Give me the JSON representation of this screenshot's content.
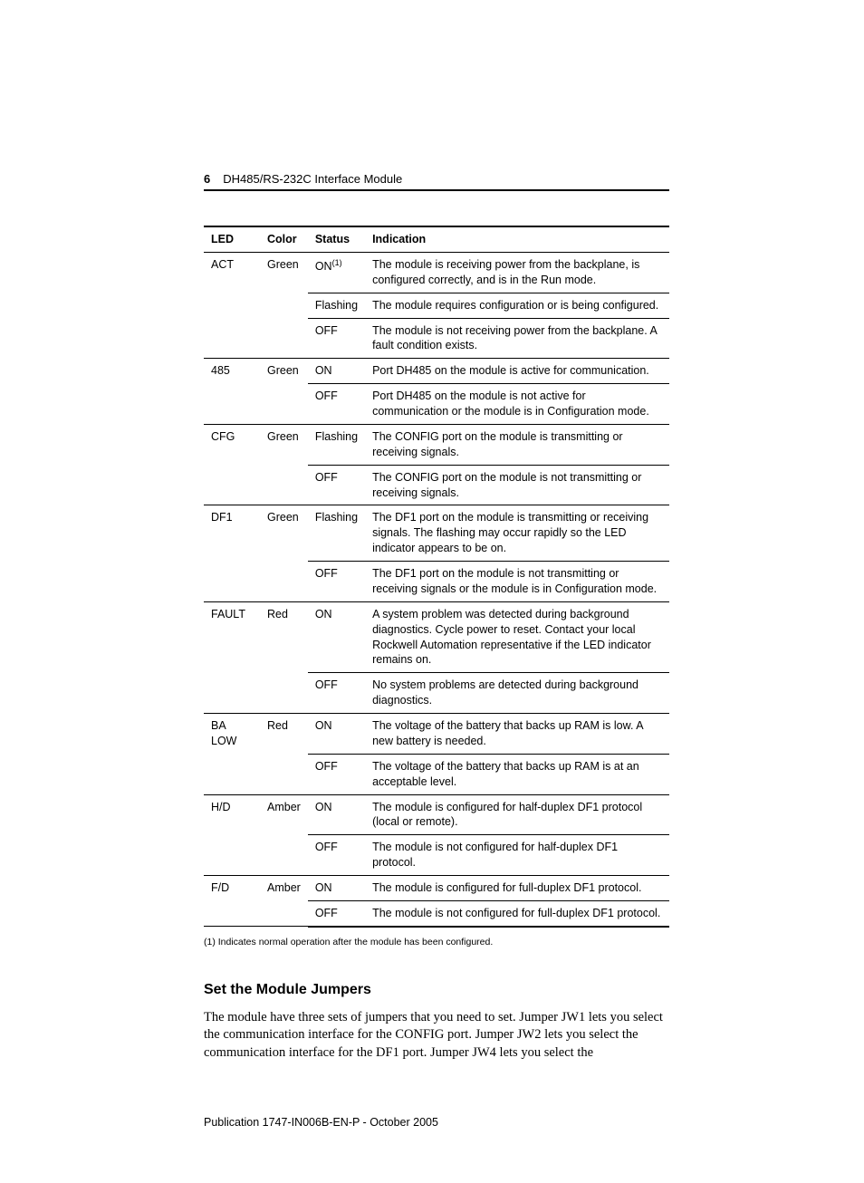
{
  "header": {
    "pageNumber": "6",
    "title": "DH485/RS-232C Interface Module"
  },
  "table": {
    "columns": [
      "LED",
      "Color",
      "Status",
      "Indication"
    ],
    "groups": [
      {
        "led": "ACT",
        "color": "Green",
        "rows": [
          {
            "status": "ON",
            "statusSup": "(1)",
            "indication": "The module is receiving power from the backplane, is configured correctly, and is in the Run mode."
          },
          {
            "status": "Flashing",
            "indication": "The module requires configuration or is being configured."
          },
          {
            "status": "OFF",
            "indication": "The module is not receiving power from the backplane. A fault condition exists."
          }
        ]
      },
      {
        "led": "485",
        "color": "Green",
        "rows": [
          {
            "status": "ON",
            "indication": "Port DH485 on the module is active for communication."
          },
          {
            "status": "OFF",
            "indication": "Port DH485 on the module is not active for communication or the module is in Configuration mode."
          }
        ]
      },
      {
        "led": "CFG",
        "color": "Green",
        "rows": [
          {
            "status": "Flashing",
            "indication": "The CONFIG port on the module is transmitting or receiving signals."
          },
          {
            "status": "OFF",
            "indication": "The CONFIG port on the module is not transmitting or receiving signals."
          }
        ]
      },
      {
        "led": "DF1",
        "color": "Green",
        "rows": [
          {
            "status": "Flashing",
            "indication": "The DF1 port on the module is transmitting or receiving signals. The flashing may occur rapidly so the LED indicator appears to be on."
          },
          {
            "status": "OFF",
            "indication": "The DF1 port on the module is not transmitting or receiving signals or the module is in Configuration mode."
          }
        ]
      },
      {
        "led": "FAULT",
        "color": "Red",
        "rows": [
          {
            "status": "ON",
            "indication": "A system problem was detected during background diagnostics. Cycle power to reset. Contact your local Rockwell Automation representative if the LED indicator remains on."
          },
          {
            "status": "OFF",
            "indication": "No system problems are detected during background diagnostics."
          }
        ]
      },
      {
        "led": "BA LOW",
        "color": "Red",
        "rows": [
          {
            "status": "ON",
            "indication": "The voltage of the battery that backs up RAM is low. A new battery is needed."
          },
          {
            "status": "OFF",
            "indication": "The voltage of the battery that backs up RAM is at an acceptable level."
          }
        ]
      },
      {
        "led": "H/D",
        "color": "Amber",
        "rows": [
          {
            "status": "ON",
            "indication": "The module is configured for half-duplex DF1 protocol (local or remote)."
          },
          {
            "status": "OFF",
            "indication": "The module is not configured for half-duplex DF1 protocol."
          }
        ]
      },
      {
        "led": "F/D",
        "color": "Amber",
        "rows": [
          {
            "status": "ON",
            "indication": "The module is configured for full-duplex DF1 protocol."
          },
          {
            "status": "OFF",
            "indication": "The module is not configured for full-duplex DF1 protocol."
          }
        ]
      }
    ]
  },
  "footnote": "(1)   Indicates normal operation after the module has been configured.",
  "section": {
    "heading": "Set the Module Jumpers",
    "body": "The module have three sets of jumpers that you need to set. Jumper JW1 lets you select the communication interface for the CONFIG port. Jumper JW2 lets you select the communication interface for the DF1 port. Jumper JW4 lets you select the"
  },
  "pubfoot": "Publication 1747-IN006B-EN-P - October 2005"
}
